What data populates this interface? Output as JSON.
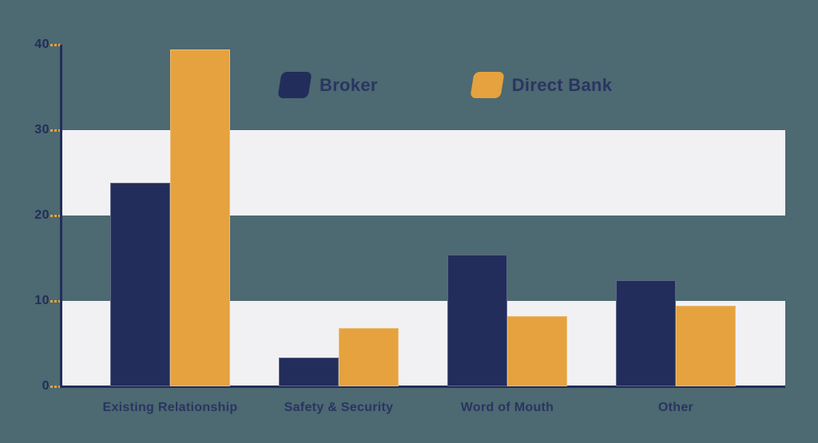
{
  "background_color": "#4d6971",
  "chart_data": {
    "type": "bar",
    "title": "",
    "xlabel": "",
    "ylabel": "",
    "categories": [
      "Existing Relationship",
      "Safety & Security",
      "Word of Mouth",
      "Other"
    ],
    "series": [
      {
        "name": "Broker",
        "color": "#222d5b",
        "values": [
          23.8,
          3.4,
          15.4,
          12.4
        ]
      },
      {
        "name": "Direct Bank",
        "color": "#e5a23e",
        "values": [
          39.4,
          6.8,
          8.2,
          9.4
        ]
      }
    ],
    "yticks": [
      40,
      30,
      20,
      10,
      0
    ],
    "ylim": [
      0,
      40
    ],
    "legend_position": "top-center",
    "grid": "alternating horizontal bands at 20-30 and 0-10",
    "band_color": "#f1f1f4",
    "axis_color": "#222d5b",
    "tick_color": "#e5a23e",
    "label_color": "#293562"
  }
}
